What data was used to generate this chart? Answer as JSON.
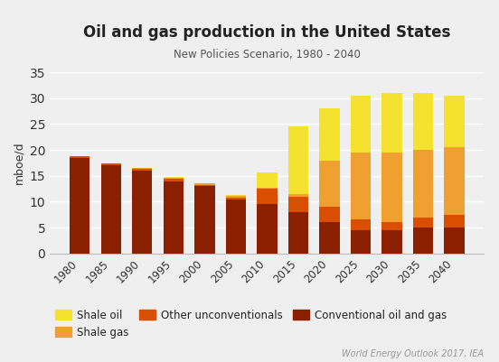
{
  "title": "Oil and gas production in the United States",
  "subtitle": "New Policies Scenario, 1980 - 2040",
  "ylabel": "mboe/d",
  "source": "World Energy Outlook 2017, IEA",
  "years": [
    1980,
    1985,
    1990,
    1995,
    2000,
    2005,
    2010,
    2015,
    2020,
    2025,
    2030,
    2035,
    2040
  ],
  "conventional": [
    18.5,
    17.0,
    16.0,
    14.0,
    13.0,
    10.5,
    9.5,
    8.0,
    6.0,
    4.5,
    4.5,
    5.0,
    5.0
  ],
  "other_unconventionals": [
    0.3,
    0.4,
    0.4,
    0.4,
    0.3,
    0.3,
    3.0,
    3.0,
    3.0,
    2.0,
    1.5,
    2.0,
    2.5
  ],
  "shale_gas": [
    0.0,
    0.0,
    0.2,
    0.2,
    0.2,
    0.3,
    0.2,
    0.5,
    9.0,
    13.0,
    13.5,
    13.0,
    13.0
  ],
  "shale_oil": [
    0.0,
    0.0,
    0.0,
    0.1,
    0.0,
    0.2,
    3.0,
    13.0,
    10.0,
    11.0,
    11.5,
    11.0,
    10.0
  ],
  "color_conventional": "#8B2000",
  "color_other_unconventionals": "#D94E00",
  "color_shale_gas": "#F0A030",
  "color_shale_oil": "#F5E230",
  "background_color": "#EFEFEF",
  "ylim": [
    0,
    35
  ],
  "yticks": [
    0,
    5,
    10,
    15,
    20,
    25,
    30,
    35
  ]
}
